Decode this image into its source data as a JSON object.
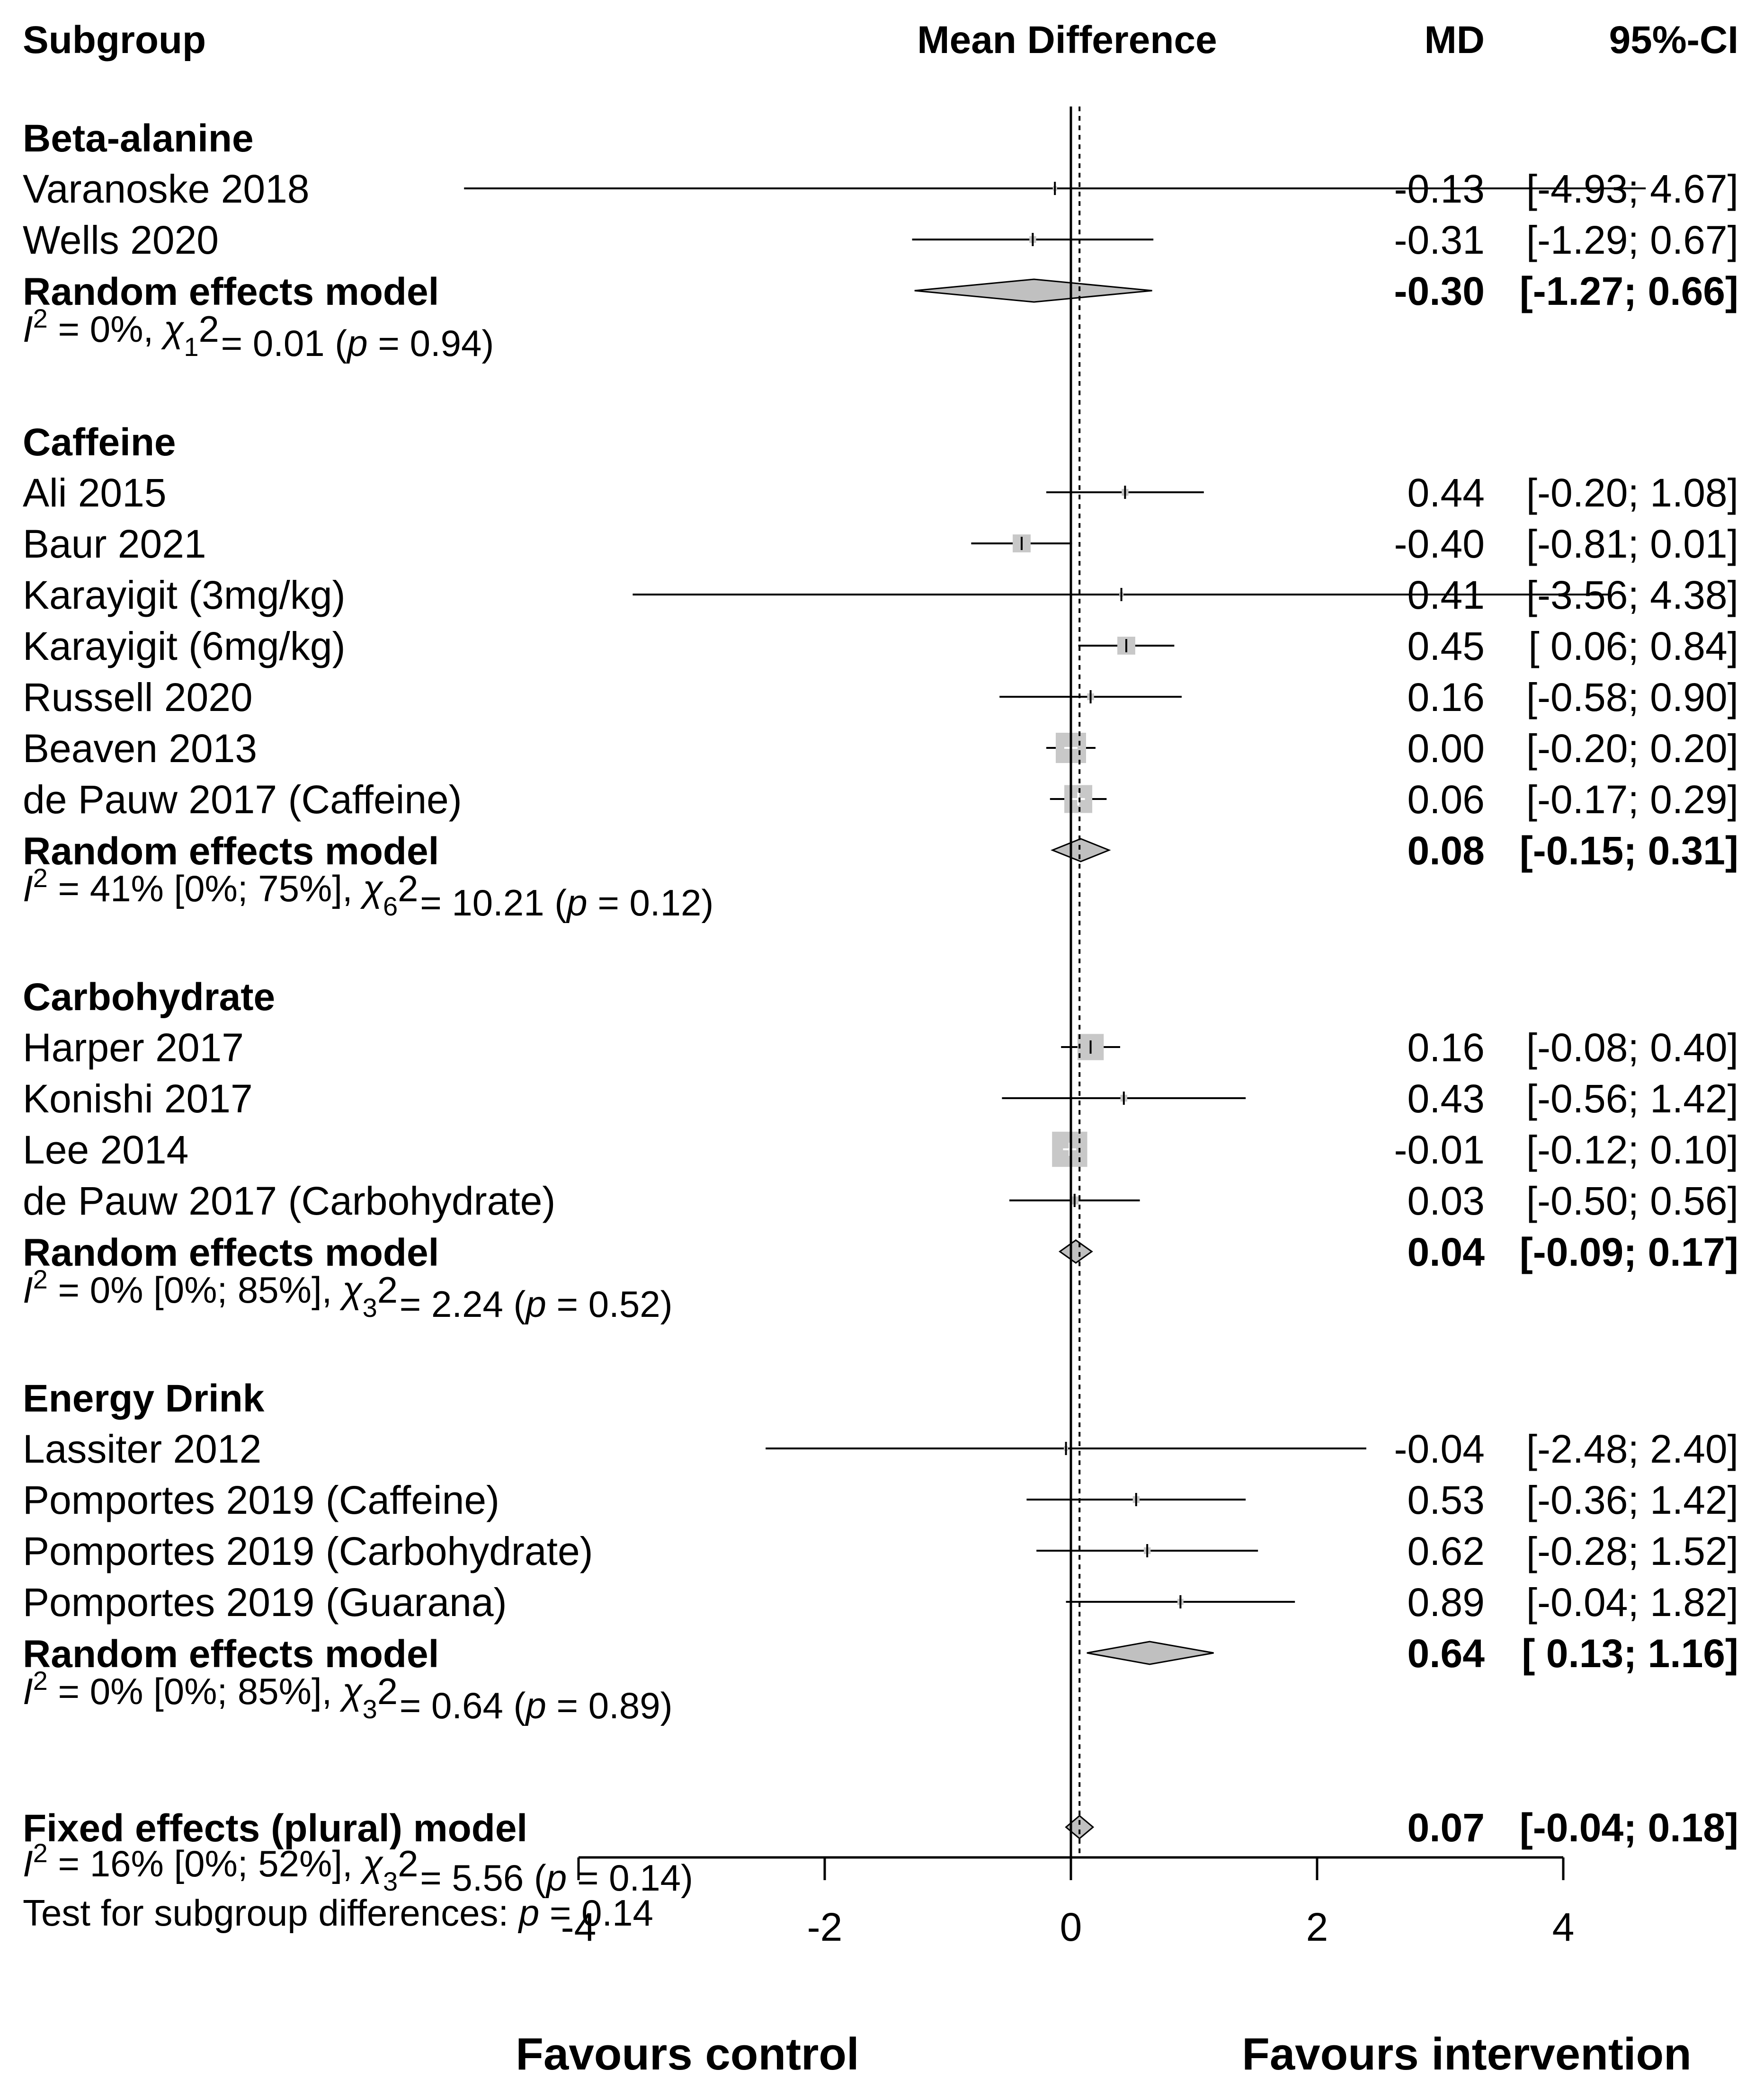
{
  "chart_data": {
    "type": "forest",
    "title": "Mean Difference",
    "columns": {
      "label": "Subgroup",
      "effect": "MD",
      "ci": "95%-CI"
    },
    "x_axis": {
      "min": -4,
      "max": 4,
      "ticks": [
        -4,
        -2,
        0,
        2,
        4
      ],
      "tick_labels": [
        "-4",
        "-2",
        "0",
        "2",
        "4"
      ],
      "reference_line": 0,
      "pooled_line": 0.07,
      "left_label": "Favours control",
      "right_label": "Favours intervention"
    },
    "subgroups": [
      {
        "name": "Beta-alanine",
        "studies": [
          {
            "label": "Varanoske 2018",
            "md": -0.13,
            "lo": -4.93,
            "hi": 4.67,
            "md_text": "-0.13",
            "ci_text": "[-4.93; 4.67]",
            "weight": 0.02
          },
          {
            "label": "Wells 2020",
            "md": -0.31,
            "lo": -1.29,
            "hi": 0.67,
            "md_text": "-0.31",
            "ci_text": "[-1.29; 0.67]",
            "weight": 0.05
          }
        ],
        "model": {
          "label": "Random effects model",
          "md": -0.3,
          "lo": -1.27,
          "hi": 0.66,
          "md_text": "-0.30",
          "ci_text": "[-1.27; 0.66]"
        },
        "heterogeneity": {
          "i2": "0%",
          "i2_ci": "",
          "df": "1",
          "chi2": "0.01",
          "p": "0.94"
        }
      },
      {
        "name": "Caffeine",
        "studies": [
          {
            "label": "Ali 2015",
            "md": 0.44,
            "lo": -0.2,
            "hi": 1.08,
            "md_text": "0.44",
            "ci_text": "[-0.20; 1.08]",
            "weight": 0.05
          },
          {
            "label": "Baur 2021",
            "md": -0.4,
            "lo": -0.81,
            "hi": 0.01,
            "md_text": "-0.40",
            "ci_text": "[-0.81; 0.01]",
            "weight": 0.35
          },
          {
            "label": "Karayigit (3mg/kg)",
            "md": 0.41,
            "lo": -3.56,
            "hi": 4.38,
            "md_text": "0.41",
            "ci_text": "[-3.56; 4.38]",
            "weight": 0.02
          },
          {
            "label": "Karayigit (6mg/kg)",
            "md": 0.45,
            "lo": 0.06,
            "hi": 0.84,
            "md_text": "0.45",
            "ci_text": "[ 0.06; 0.84]",
            "weight": 0.35
          },
          {
            "label": "Russell 2020",
            "md": 0.16,
            "lo": -0.58,
            "hi": 0.9,
            "md_text": "0.16",
            "ci_text": "[-0.58; 0.90]",
            "weight": 0.05
          },
          {
            "label": "Beaven 2013",
            "md": 0.0,
            "lo": -0.2,
            "hi": 0.2,
            "md_text": "0.00",
            "ci_text": "[-0.20; 0.20]",
            "weight": 1.0
          },
          {
            "label": "de Pauw 2017 (Caffeine)",
            "md": 0.06,
            "lo": -0.17,
            "hi": 0.29,
            "md_text": "0.06",
            "ci_text": "[-0.17; 0.29]",
            "weight": 0.85
          }
        ],
        "model": {
          "label": "Random effects model",
          "md": 0.08,
          "lo": -0.15,
          "hi": 0.31,
          "md_text": "0.08",
          "ci_text": "[-0.15; 0.31]"
        },
        "heterogeneity": {
          "i2": "41%",
          "i2_ci": "[0%; 75%]",
          "df": "6",
          "chi2": "10.21",
          "p": "0.12"
        }
      },
      {
        "name": "Carbohydrate",
        "studies": [
          {
            "label": "Harper 2017",
            "md": 0.16,
            "lo": -0.08,
            "hi": 0.4,
            "md_text": "0.16",
            "ci_text": "[-0.08; 0.40]",
            "weight": 0.75
          },
          {
            "label": "Konishi 2017",
            "md": 0.43,
            "lo": -0.56,
            "hi": 1.42,
            "md_text": "0.43",
            "ci_text": "[-0.56; 1.42]",
            "weight": 0.05
          },
          {
            "label": "Lee 2014",
            "md": -0.01,
            "lo": -0.12,
            "hi": 0.1,
            "md_text": "-0.01",
            "ci_text": "[-0.12; 0.10]",
            "weight": 1.35
          },
          {
            "label": "de Pauw 2017 (Carbohydrate)",
            "md": 0.03,
            "lo": -0.5,
            "hi": 0.56,
            "md_text": "0.03",
            "ci_text": "[-0.50; 0.56]",
            "weight": 0.07
          }
        ],
        "model": {
          "label": "Random effects model",
          "md": 0.04,
          "lo": -0.09,
          "hi": 0.17,
          "md_text": "0.04",
          "ci_text": "[-0.09; 0.17]"
        },
        "heterogeneity": {
          "i2": "0%",
          "i2_ci": "[0%; 85%]",
          "df": "3",
          "chi2": "2.24",
          "p": "0.52"
        }
      },
      {
        "name": "Energy Drink",
        "studies": [
          {
            "label": "Lassiter 2012",
            "md": -0.04,
            "lo": -2.48,
            "hi": 2.4,
            "md_text": "-0.04",
            "ci_text": "[-2.48; 2.40]",
            "weight": 0.02
          },
          {
            "label": "Pomportes 2019 (Caffeine)",
            "md": 0.53,
            "lo": -0.36,
            "hi": 1.42,
            "md_text": "0.53",
            "ci_text": "[-0.36; 1.42]",
            "weight": 0.05
          },
          {
            "label": "Pomportes 2019 (Carbohydrate)",
            "md": 0.62,
            "lo": -0.28,
            "hi": 1.52,
            "md_text": "0.62",
            "ci_text": "[-0.28; 1.52]",
            "weight": 0.05
          },
          {
            "label": "Pomportes 2019 (Guarana)",
            "md": 0.89,
            "lo": -0.04,
            "hi": 1.82,
            "md_text": "0.89",
            "ci_text": "[-0.04; 1.82]",
            "weight": 0.04
          }
        ],
        "model": {
          "label": "Random effects model",
          "md": 0.64,
          "lo": 0.13,
          "hi": 1.16,
          "md_text": "0.64",
          "ci_text": "[ 0.13; 1.16]"
        },
        "heterogeneity": {
          "i2": "0%",
          "i2_ci": "[0%; 85%]",
          "df": "3",
          "chi2": "0.64",
          "p": "0.89"
        }
      }
    ],
    "overall": {
      "label": "Fixed effects (plural) model",
      "md": 0.07,
      "lo": -0.04,
      "hi": 0.18,
      "md_text": "0.07",
      "ci_text": "[-0.04; 0.18]",
      "heterogeneity": {
        "i2": "16%",
        "i2_ci": "[0%; 52%]",
        "df": "3",
        "chi2": "5.56",
        "p": "0.14"
      },
      "subgroup_test_label": "Test for subgroup differences:",
      "subgroup_test_p": "0.14"
    }
  }
}
